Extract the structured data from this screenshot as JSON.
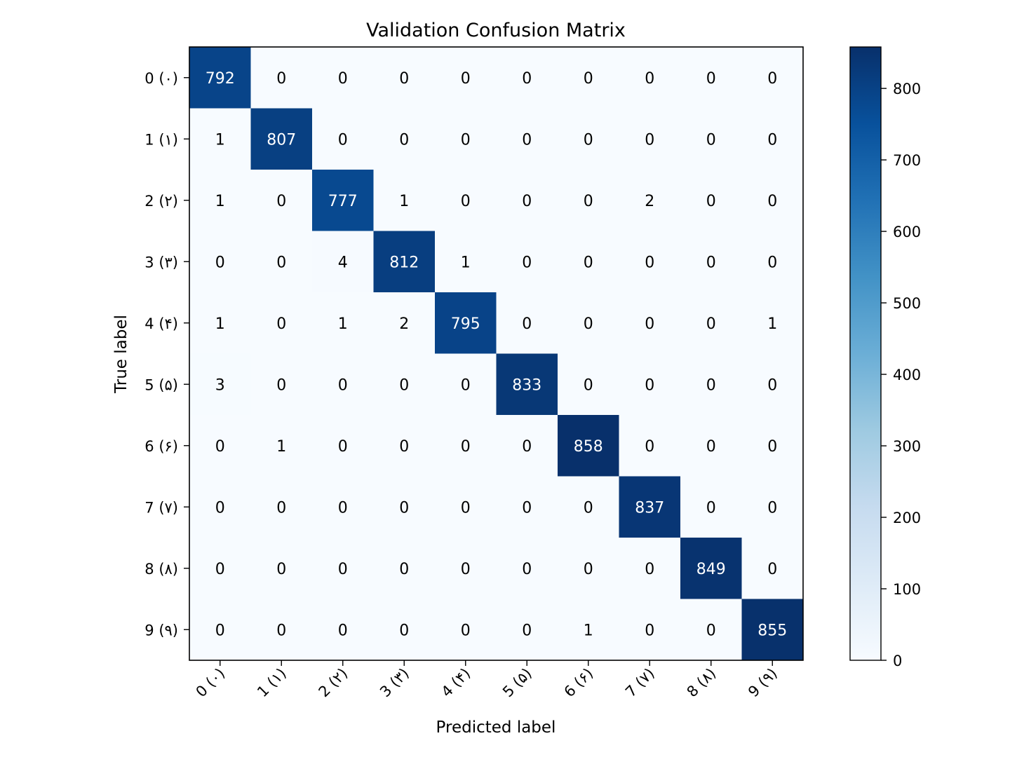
{
  "chart_data": {
    "type": "heatmap",
    "title": "Validation Confusion Matrix",
    "xlabel": "Predicted label",
    "ylabel": "True label",
    "x_tick_labels": [
      "0 (۰)",
      "1 (۱)",
      "2 (۲)",
      "3 (۳)",
      "4 (۴)",
      "5 (۵)",
      "6 (۶)",
      "7 (۷)",
      "8 (۸)",
      "9 (۹)"
    ],
    "y_tick_labels": [
      "0 (۰)",
      "1 (۱)",
      "2 (۲)",
      "3 (۳)",
      "4 (۴)",
      "5 (۵)",
      "6 (۶)",
      "7 (۷)",
      "8 (۸)",
      "9 (۹)"
    ],
    "matrix": [
      [
        792,
        0,
        0,
        0,
        0,
        0,
        0,
        0,
        0,
        0
      ],
      [
        1,
        807,
        0,
        0,
        0,
        0,
        0,
        0,
        0,
        0
      ],
      [
        1,
        0,
        777,
        1,
        0,
        0,
        0,
        2,
        0,
        0
      ],
      [
        0,
        0,
        4,
        812,
        1,
        0,
        0,
        0,
        0,
        0
      ],
      [
        1,
        0,
        1,
        2,
        795,
        0,
        0,
        0,
        0,
        1
      ],
      [
        3,
        0,
        0,
        0,
        0,
        833,
        0,
        0,
        0,
        0
      ],
      [
        0,
        1,
        0,
        0,
        0,
        0,
        858,
        0,
        0,
        0
      ],
      [
        0,
        0,
        0,
        0,
        0,
        0,
        0,
        837,
        0,
        0
      ],
      [
        0,
        0,
        0,
        0,
        0,
        0,
        0,
        0,
        849,
        0
      ],
      [
        0,
        0,
        0,
        0,
        0,
        0,
        1,
        0,
        0,
        855
      ]
    ],
    "colormap": "Blues",
    "colorbar": {
      "range": [
        0,
        858
      ],
      "ticks": [
        0,
        100,
        200,
        300,
        400,
        500,
        600,
        700,
        800
      ]
    }
  }
}
